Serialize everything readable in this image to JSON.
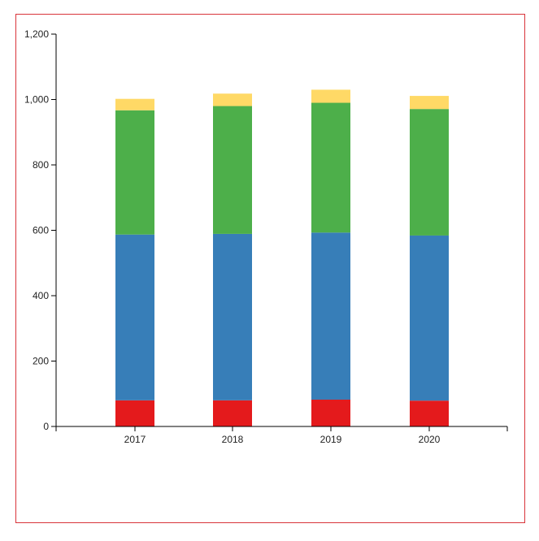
{
  "chart_data": {
    "type": "bar",
    "stacked": true,
    "title": "",
    "xlabel": "",
    "ylabel": "",
    "categories": [
      "2017",
      "2018",
      "2019",
      "2020"
    ],
    "ylim": [
      0,
      1200
    ],
    "yticks": [
      0,
      200,
      400,
      600,
      800,
      1000,
      1200
    ],
    "ytick_labels": [
      "0",
      "200",
      "400",
      "600",
      "800",
      "1,000",
      "1,200"
    ],
    "grid": false,
    "legend": "none",
    "series": [
      {
        "color": "#e41a1c",
        "values": [
          80,
          80,
          82,
          79
        ]
      },
      {
        "color": "#377eb8",
        "values": [
          507,
          509,
          511,
          505
        ]
      },
      {
        "color": "#4daf4a",
        "values": [
          380,
          391,
          397,
          387
        ]
      },
      {
        "color": "#ffd966",
        "values": [
          35,
          38,
          40,
          40
        ]
      }
    ]
  },
  "colors": {
    "frame_border": "#d9343a",
    "axis": "#000000"
  }
}
